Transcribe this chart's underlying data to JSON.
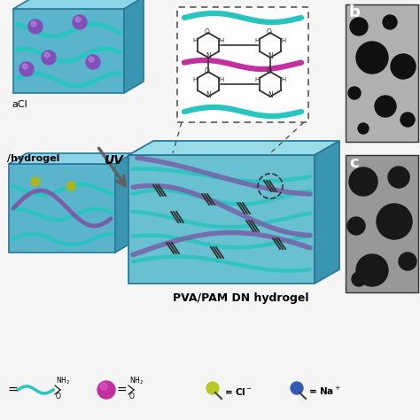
{
  "background_color": "#f5f5f5",
  "label_pvapam": "PVA/PAM DN hydrogel",
  "label_uv": "UV",
  "label_nacl": "aCl",
  "label_hydrogel": "/hydrogel",
  "label_b": "b",
  "label_c": "c",
  "box_front_color": "#5ab5cc",
  "box_top_color": "#8dd4e8",
  "box_right_color": "#3a96b0",
  "box_edge_color": "#2a7898",
  "teal_color": "#28c4c0",
  "purple_color": "#7860a8",
  "magenta_color": "#c030a0",
  "ion_purple": "#8050b8",
  "ion_green": "#a8b820",
  "ion_blue": "#3050b8",
  "arrow_color": "#606060",
  "crosslink_color": "#303030",
  "inset_bg": "#ffffff",
  "inset_edge": "#606060",
  "sem_b_bg": "#909090",
  "sem_c_bg": "#787878",
  "sem_pore": "#181818",
  "legend_text_color": "#000000",
  "cl_ion_color": "#b8c828",
  "na_ion_color": "#3858b8"
}
